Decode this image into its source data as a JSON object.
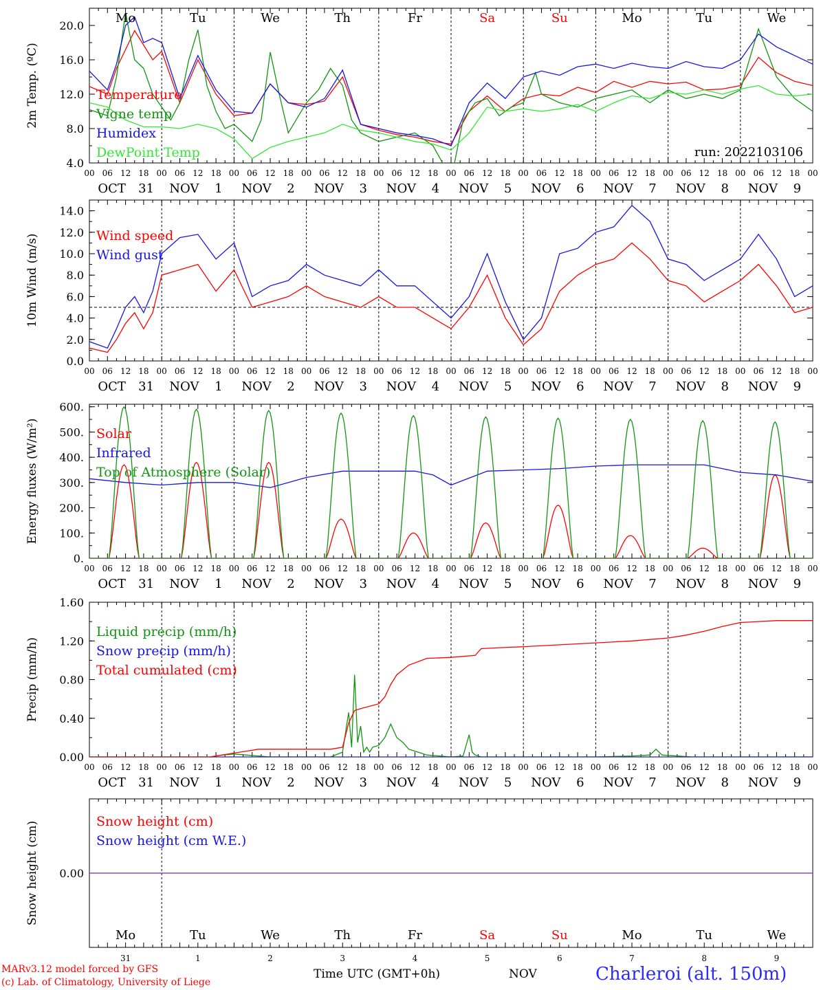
{
  "colors": {
    "red": "#ff0000",
    "dark_green": "#129412",
    "blue": "#1515e8",
    "light_green": "#33e833",
    "purple": "#8040c0",
    "station": "#2a2aff",
    "weekend": "#ff0000"
  },
  "days": [
    {
      "dow": "Mo",
      "month_label": "OCT",
      "date_label": "31",
      "short": "31",
      "weekend": false
    },
    {
      "dow": "Tu",
      "month_label": "NOV",
      "date_label": "1",
      "short": "1",
      "weekend": false
    },
    {
      "dow": "We",
      "month_label": "NOV",
      "date_label": "2",
      "short": "2",
      "weekend": false
    },
    {
      "dow": "Th",
      "month_label": "NOV",
      "date_label": "3",
      "short": "3",
      "weekend": false
    },
    {
      "dow": "Fr",
      "month_label": "NOV",
      "date_label": "4",
      "short": "4",
      "weekend": false
    },
    {
      "dow": "Sa",
      "month_label": "NOV",
      "date_label": "5",
      "short": "5",
      "weekend": true
    },
    {
      "dow": "Su",
      "month_label": "NOV",
      "date_label": "6",
      "short": "6",
      "weekend": true
    },
    {
      "dow": "Mo",
      "month_label": "NOV",
      "date_label": "7",
      "short": "7",
      "weekend": false
    },
    {
      "dow": "Tu",
      "month_label": "NOV",
      "date_label": "8",
      "short": "8",
      "weekend": false
    },
    {
      "dow": "We",
      "month_label": "NOV",
      "date_label": "9",
      "short": "9",
      "weekend": false
    }
  ],
  "hour_ticks": [
    "00",
    "06",
    "12",
    "18"
  ],
  "footer": {
    "credit_line1": "MARv3.12 model forced by GFS",
    "credit_line2": "(c) Lab. of Climatology, University of Liege",
    "xaxis_title": "Time UTC (GMT+0h)",
    "month_label": "NOV",
    "station": "Charleroi (alt. 150m)"
  },
  "chart_data": [
    {
      "type": "line",
      "ylabel": "2m Temp. (ºC)",
      "ylim": [
        4,
        22
      ],
      "yticks": [
        "4.0",
        "8.0",
        "12.0",
        "16.0",
        "20.0"
      ],
      "ytick_values": [
        4,
        8,
        12,
        16,
        20
      ],
      "annotation": "run: 2022103106",
      "x_unit": "hours from OCT 31 00 UTC",
      "series": [
        {
          "name": "Temperature",
          "color": "#ff0000",
          "x": [
            0,
            6,
            9,
            15,
            21,
            24,
            30,
            36,
            42,
            48,
            54,
            60,
            66,
            72,
            78,
            84,
            90,
            96,
            102,
            108,
            114,
            120,
            126,
            132,
            138,
            144,
            150,
            156,
            162,
            168,
            174,
            180,
            186,
            192,
            198,
            204,
            210,
            216,
            222,
            228,
            234,
            240
          ],
          "y": [
            12.9,
            12.0,
            15.0,
            19.4,
            16.0,
            17.0,
            11.0,
            16.0,
            12.0,
            9.5,
            9.8,
            13.2,
            11.0,
            10.8,
            11.2,
            14.0,
            8.5,
            7.8,
            7.3,
            7.0,
            6.5,
            6.2,
            10.0,
            11.8,
            10.0,
            11.5,
            12.0,
            11.8,
            12.8,
            12.2,
            13.5,
            12.8,
            13.5,
            13.2,
            13.4,
            12.5,
            12.6,
            13.0,
            16.3,
            14.5,
            13.5,
            13.0
          ]
        },
        {
          "name": "Vigne temp",
          "color": "#129412",
          "x": [
            0,
            6,
            9,
            12,
            15,
            18,
            21,
            24,
            27,
            30,
            33,
            36,
            39,
            42,
            45,
            48,
            51,
            54,
            57,
            60,
            63,
            66,
            72,
            76,
            80,
            84,
            87,
            90,
            96,
            102,
            108,
            114,
            118,
            120,
            124,
            128,
            132,
            136,
            140,
            144,
            148,
            150,
            156,
            162,
            168,
            174,
            180,
            186,
            192,
            198,
            204,
            210,
            216,
            222,
            228,
            234,
            240
          ],
          "y": [
            10.2,
            9.5,
            14.0,
            21.5,
            16.0,
            15.0,
            12.0,
            10.5,
            9.0,
            11.0,
            16.0,
            19.5,
            13.0,
            10.0,
            8.0,
            8.5,
            7.5,
            6.5,
            9.0,
            16.9,
            12.0,
            7.5,
            11.0,
            12.5,
            15.0,
            13.0,
            9.0,
            7.5,
            6.5,
            7.0,
            7.5,
            6.0,
            3.5,
            2.0,
            9.0,
            11.0,
            11.5,
            9.5,
            10.5,
            11.0,
            14.5,
            12.0,
            11.0,
            10.5,
            11.5,
            12.0,
            12.5,
            11.0,
            12.5,
            11.5,
            12.0,
            11.5,
            12.5,
            19.6,
            14.0,
            11.5,
            10.0
          ]
        },
        {
          "name": "Humidex",
          "color": "#1515e8",
          "x": [
            0,
            6,
            9,
            12,
            15,
            18,
            21,
            24,
            30,
            36,
            42,
            48,
            54,
            60,
            66,
            72,
            78,
            84,
            90,
            96,
            102,
            108,
            114,
            120,
            126,
            132,
            138,
            144,
            150,
            156,
            162,
            168,
            174,
            180,
            186,
            192,
            198,
            204,
            210,
            216,
            222,
            228,
            234,
            240
          ],
          "y": [
            14.7,
            12.5,
            15.5,
            20.0,
            21.0,
            18.0,
            18.5,
            18.0,
            11.5,
            16.5,
            12.5,
            10.0,
            9.8,
            13.2,
            11.0,
            10.5,
            11.5,
            14.8,
            8.5,
            8.0,
            7.5,
            7.2,
            6.8,
            6.0,
            11.0,
            13.3,
            11.5,
            14.0,
            14.7,
            14.2,
            15.2,
            15.5,
            15.0,
            15.6,
            15.2,
            15.0,
            15.8,
            15.2,
            15.0,
            16.0,
            19.0,
            17.5,
            16.5,
            15.5
          ]
        },
        {
          "name": "DewPoint Temp",
          "color": "#33e833",
          "x": [
            0,
            6,
            12,
            18,
            24,
            30,
            36,
            42,
            48,
            54,
            60,
            66,
            72,
            78,
            84,
            90,
            96,
            102,
            108,
            114,
            120,
            126,
            132,
            138,
            144,
            150,
            156,
            162,
            168,
            174,
            180,
            186,
            192,
            198,
            204,
            210,
            216,
            222,
            228,
            234,
            240
          ],
          "y": [
            11.0,
            10.5,
            9.0,
            8.2,
            8.2,
            8.0,
            8.5,
            8.0,
            6.8,
            4.5,
            5.8,
            6.5,
            7.0,
            7.5,
            8.5,
            7.8,
            7.5,
            7.0,
            6.5,
            6.2,
            5.5,
            7.5,
            10.5,
            10.0,
            10.3,
            10.0,
            10.3,
            10.8,
            10.0,
            11.0,
            11.8,
            11.5,
            12.2,
            12.0,
            12.5,
            12.0,
            12.6,
            13.0,
            12.0,
            11.8,
            12.0
          ]
        }
      ]
    },
    {
      "type": "line",
      "ylabel": "10m Wind (m/s)",
      "ylim": [
        0,
        15
      ],
      "yticks": [
        "0.0",
        "2.0",
        "4.0",
        "6.0",
        "8.0",
        "10.0",
        "12.0",
        "14.0"
      ],
      "ytick_values": [
        0,
        2,
        4,
        6,
        8,
        10,
        12,
        14
      ],
      "reference_line": 5,
      "x_unit": "hours from OCT 31 00 UTC",
      "series": [
        {
          "name": "Wind speed",
          "color": "#ff0000",
          "x": [
            0,
            3,
            6,
            9,
            12,
            15,
            18,
            21,
            24,
            30,
            36,
            42,
            48,
            54,
            60,
            66,
            72,
            78,
            84,
            90,
            96,
            102,
            108,
            114,
            120,
            126,
            132,
            138,
            144,
            150,
            156,
            162,
            168,
            174,
            180,
            186,
            192,
            198,
            204,
            210,
            216,
            222,
            228,
            234,
            240
          ],
          "y": [
            1.2,
            1.0,
            0.8,
            2.0,
            3.5,
            4.5,
            3.0,
            4.5,
            8.0,
            8.5,
            9.0,
            6.5,
            8.5,
            5.0,
            5.5,
            6.0,
            7.0,
            6.0,
            5.5,
            5.0,
            6.0,
            5.0,
            5.0,
            4.0,
            3.0,
            5.0,
            8.0,
            4.0,
            1.5,
            3.0,
            6.5,
            8.0,
            9.0,
            9.5,
            11.0,
            9.5,
            7.5,
            7.0,
            5.5,
            6.5,
            7.5,
            9.0,
            7.0,
            4.5,
            5.0
          ]
        },
        {
          "name": "Wind gust",
          "color": "#1515e8",
          "x": [
            0,
            3,
            6,
            9,
            12,
            15,
            18,
            21,
            24,
            30,
            36,
            42,
            48,
            54,
            60,
            66,
            72,
            78,
            84,
            90,
            96,
            102,
            108,
            114,
            120,
            126,
            132,
            138,
            144,
            150,
            156,
            162,
            168,
            174,
            180,
            186,
            192,
            198,
            204,
            210,
            216,
            222,
            228,
            234,
            240
          ],
          "y": [
            1.8,
            1.5,
            1.2,
            3.0,
            5.0,
            6.0,
            4.5,
            6.5,
            10.0,
            11.5,
            11.8,
            9.5,
            11.0,
            6.0,
            7.0,
            7.5,
            9.0,
            8.0,
            7.5,
            7.0,
            8.5,
            7.0,
            7.0,
            5.5,
            4.0,
            6.0,
            10.0,
            5.5,
            2.0,
            4.0,
            10.0,
            10.5,
            12.0,
            12.5,
            14.5,
            13.0,
            9.5,
            9.0,
            7.5,
            8.5,
            9.5,
            11.8,
            9.5,
            6.0,
            7.0
          ]
        }
      ]
    },
    {
      "type": "line",
      "ylabel": "Energy fluxes (W/m²)",
      "ylim": [
        0,
        610
      ],
      "yticks": [
        "0.",
        "100.",
        "200.",
        "300.",
        "400.",
        "500.",
        "600."
      ],
      "ytick_values": [
        0,
        100,
        200,
        300,
        400,
        500,
        600
      ],
      "x_unit": "hours from OCT 31 00 UTC",
      "daylight_hours": [
        6.5,
        16.5
      ],
      "series": [
        {
          "name": "Solar",
          "color": "#ff0000",
          "shape": "daily-peak",
          "daily_peaks": [
            370,
            380,
            380,
            155,
            100,
            140,
            210,
            90,
            40,
            330
          ]
        },
        {
          "name": "Infrared",
          "color": "#1515e8",
          "x": [
            0,
            12,
            24,
            36,
            48,
            60,
            72,
            84,
            96,
            108,
            114,
            120,
            132,
            144,
            156,
            168,
            180,
            192,
            204,
            216,
            228,
            240
          ],
          "y": [
            315,
            300,
            290,
            300,
            300,
            280,
            320,
            345,
            345,
            345,
            330,
            290,
            345,
            350,
            355,
            365,
            370,
            370,
            370,
            340,
            330,
            305
          ]
        },
        {
          "name": "Top of Atmosphere (Solar)",
          "color": "#129412",
          "shape": "daily-peak",
          "daily_peaks": [
            600,
            590,
            585,
            575,
            565,
            560,
            555,
            550,
            545,
            540
          ]
        }
      ]
    },
    {
      "type": "line",
      "ylabel": "Precip (mm/h)",
      "ylim": [
        0,
        1.6
      ],
      "yticks": [
        "0.00",
        "0.40",
        "0.80",
        "1.20",
        "1.60"
      ],
      "ytick_values": [
        0,
        0.4,
        0.8,
        1.2,
        1.6
      ],
      "x_unit": "hours from OCT 31 00 UTC",
      "series": [
        {
          "name": "Liquid precip (mm/h)",
          "color": "#129412",
          "x": [
            0,
            40,
            44,
            48,
            52,
            56,
            60,
            80,
            84,
            86,
            87,
            88,
            89,
            90,
            91,
            92,
            93,
            94,
            96,
            98,
            100,
            102,
            104,
            106,
            108,
            110,
            112,
            120,
            124,
            126,
            127,
            128,
            130,
            144,
            168,
            180,
            186,
            188,
            190,
            200,
            240
          ],
          "y": [
            0,
            0,
            0.02,
            0.03,
            0.02,
            0.01,
            0,
            0,
            0.05,
            0.46,
            0.1,
            0.85,
            0.15,
            0.32,
            0.05,
            0.1,
            0.05,
            0.1,
            0.12,
            0.2,
            0.34,
            0.2,
            0.15,
            0.08,
            0.06,
            0.04,
            0.02,
            0,
            0.01,
            0.23,
            0.05,
            0.02,
            0,
            0,
            0,
            0.01,
            0.02,
            0.08,
            0.02,
            0,
            0
          ]
        },
        {
          "name": "Snow precip (mm/h)",
          "color": "#1515e8",
          "x": [
            0,
            240
          ],
          "y": [
            0,
            0
          ]
        },
        {
          "name": "Total cumulated (cm)",
          "color": "#ff0000",
          "x": [
            0,
            40,
            48,
            52,
            56,
            60,
            72,
            80,
            84,
            86,
            88,
            90,
            96,
            98,
            100,
            102,
            106,
            112,
            120,
            128,
            130,
            136,
            144,
            156,
            168,
            180,
            192,
            198,
            204,
            210,
            216,
            222,
            228,
            240
          ],
          "y": [
            0,
            0,
            0.04,
            0.06,
            0.08,
            0.08,
            0.08,
            0.08,
            0.1,
            0.35,
            0.48,
            0.5,
            0.55,
            0.62,
            0.75,
            0.85,
            0.95,
            1.02,
            1.03,
            1.05,
            1.12,
            1.13,
            1.14,
            1.16,
            1.18,
            1.2,
            1.23,
            1.26,
            1.3,
            1.35,
            1.39,
            1.4,
            1.41,
            1.41
          ]
        }
      ]
    },
    {
      "type": "line",
      "ylabel": "Snow height (cm)",
      "ylim": [
        -1,
        1
      ],
      "yticks": [
        "0.00"
      ],
      "ytick_values": [
        0
      ],
      "x_unit": "hours from OCT 31 00 UTC",
      "series": [
        {
          "name": "Snow height (cm)",
          "color": "#ff0000",
          "x": [
            0,
            240
          ],
          "y": [
            0,
            0
          ]
        },
        {
          "name": "Snow height (cm W.E.)",
          "color": "#1515e8",
          "x": [
            0,
            240
          ],
          "y": [
            0,
            0
          ]
        }
      ]
    }
  ]
}
